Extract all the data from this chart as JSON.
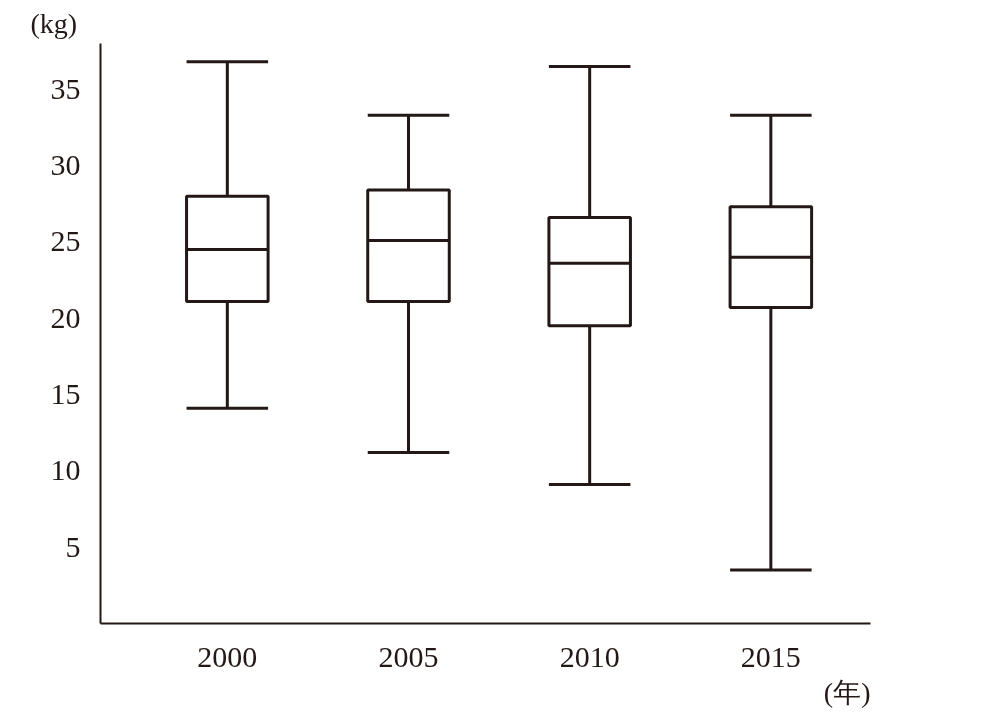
{
  "chart_data": {
    "type": "box",
    "ylabel": "(kg)",
    "xlabel": "(年)",
    "categories": [
      "2000",
      "2005",
      "2010",
      "2015"
    ],
    "boxes": [
      {
        "low": 14.1,
        "q1": 21.1,
        "median": 24.5,
        "q3": 28.0,
        "high": 36.8
      },
      {
        "low": 11.2,
        "q1": 21.1,
        "median": 25.1,
        "q3": 28.4,
        "high": 33.3
      },
      {
        "low": 9.1,
        "q1": 19.5,
        "median": 23.6,
        "q3": 26.6,
        "high": 36.5
      },
      {
        "low": 3.5,
        "q1": 20.7,
        "median": 24.0,
        "q3": 27.3,
        "high": 33.3
      }
    ],
    "color": "#231815",
    "ylim": [
      0,
      38
    ],
    "yticks": [
      5,
      10,
      15,
      20,
      25,
      30,
      35
    ],
    "grid": false
  }
}
